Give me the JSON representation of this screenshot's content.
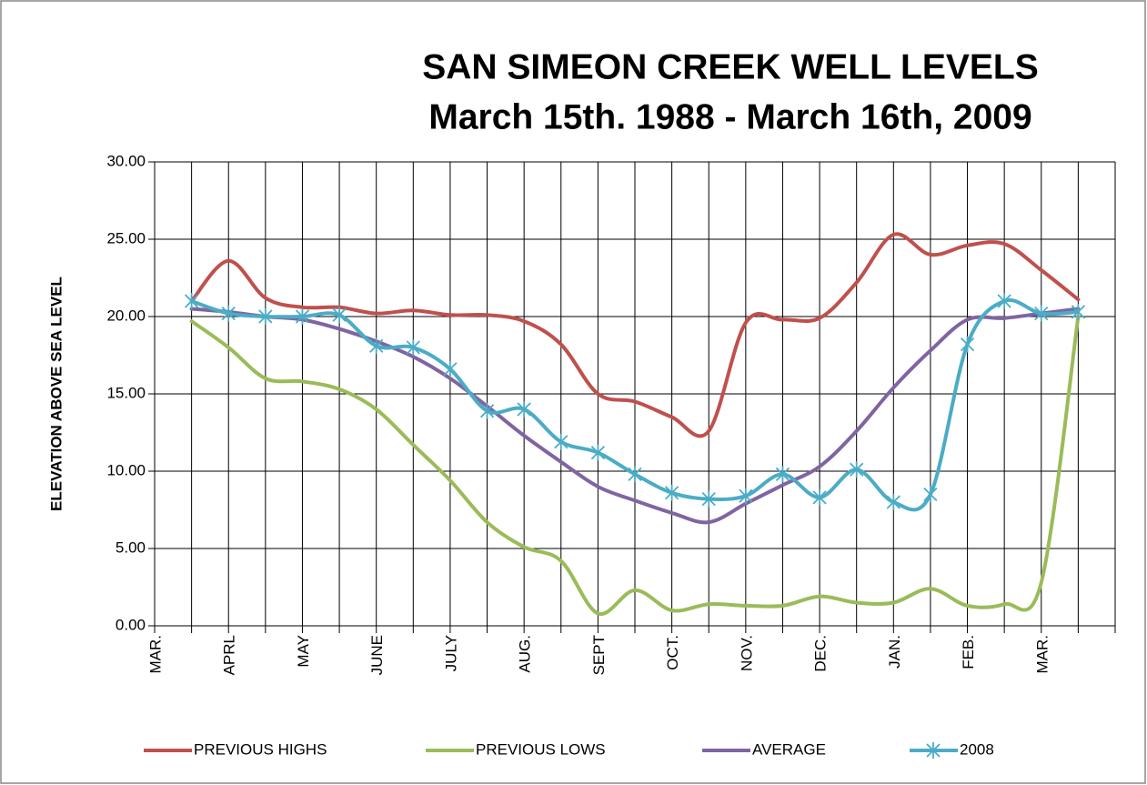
{
  "chart_data": {
    "type": "line",
    "title": "SAN SIMEON CREEK WELL LEVELS",
    "subtitle": "March 15th. 1988 - March 16th, 2009",
    "y_label": "ELEVATION ABOVE SEA LEVEL",
    "categories": [
      "MAR.",
      null,
      "APRL",
      null,
      "MAY",
      null,
      "JUNE",
      null,
      "JULY",
      null,
      "AUG.",
      null,
      "SEPT",
      null,
      "OCT.",
      null,
      "NOV.",
      null,
      "DEC.",
      null,
      "JAN.",
      null,
      "FEB.",
      null,
      "MAR.",
      null,
      null
    ],
    "series": [
      {
        "name": "PREVIOUS HIGHS",
        "color": "#c0504d",
        "marker": "none",
        "values": [
          null,
          21.0,
          23.6,
          21.2,
          20.6,
          20.6,
          20.2,
          20.4,
          20.1,
          20.1,
          19.7,
          18.2,
          15.0,
          14.5,
          13.5,
          12.6,
          19.6,
          19.8,
          19.9,
          22.2,
          25.3,
          24.0,
          24.6,
          24.7,
          23.0,
          21.1,
          null
        ]
      },
      {
        "name": "PREVIOUS LOWS",
        "color": "#9bbb59",
        "marker": "none",
        "values": [
          null,
          19.7,
          18.0,
          16.0,
          15.8,
          15.3,
          14.0,
          11.7,
          9.4,
          6.7,
          5.1,
          4.2,
          0.8,
          2.3,
          1.0,
          1.4,
          1.3,
          1.3,
          1.9,
          1.5,
          1.5,
          2.4,
          1.3,
          1.4,
          2.8,
          20.0,
          null
        ]
      },
      {
        "name": "AVERAGE",
        "color": "#8064a2",
        "marker": "none",
        "values": [
          null,
          20.5,
          20.3,
          20.0,
          19.8,
          19.2,
          18.4,
          17.4,
          16.0,
          14.2,
          12.3,
          10.6,
          9.0,
          8.1,
          7.3,
          6.7,
          7.9,
          9.1,
          10.3,
          12.6,
          15.4,
          17.8,
          19.8,
          19.9,
          20.2,
          20.5,
          null
        ]
      },
      {
        "name": "2008",
        "color": "#4bacc6",
        "marker": "asterisk",
        "values": [
          null,
          21.0,
          20.2,
          20.0,
          20.0,
          20.1,
          18.1,
          18.0,
          16.6,
          13.9,
          14.0,
          11.9,
          11.2,
          9.8,
          8.6,
          8.2,
          8.4,
          9.8,
          8.3,
          10.1,
          8.0,
          8.5,
          18.2,
          21.0,
          20.2,
          20.3,
          null
        ]
      }
    ],
    "ylim": [
      0,
      30
    ],
    "yticks": [
      {
        "value": 0,
        "label": "0.00"
      },
      {
        "value": 5,
        "label": "5.00"
      },
      {
        "value": 10,
        "label": "10.00"
      },
      {
        "value": 15,
        "label": "15.00"
      },
      {
        "value": 20,
        "label": "20.00"
      },
      {
        "value": 25,
        "label": "25.00"
      },
      {
        "value": 30,
        "label": "30.00"
      }
    ],
    "grid": true,
    "smooth": true,
    "legend": "bottom"
  }
}
